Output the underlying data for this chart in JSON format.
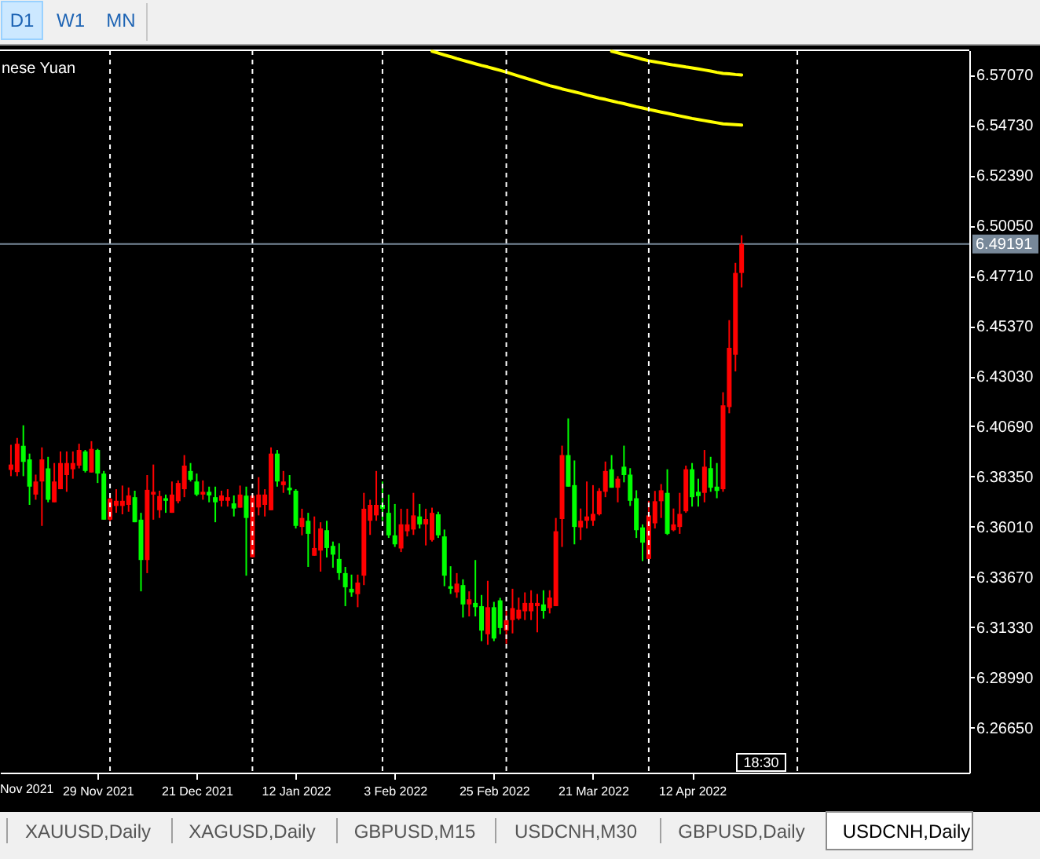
{
  "chart_data": {
    "type": "candlestick",
    "title": "nese Yuan",
    "categories": [
      null,
      null,
      null,
      null,
      null,
      null,
      null,
      null,
      null,
      null,
      null,
      null,
      null,
      null,
      "29 Nov 2021",
      null,
      null,
      null,
      null,
      null,
      null,
      null,
      null,
      null,
      null,
      null,
      null,
      null,
      null,
      null,
      "21 Dec 2021",
      null,
      null,
      null,
      null,
      null,
      null,
      null,
      null,
      null,
      null,
      null,
      null,
      null,
      null,
      null,
      "12 Jan 2022",
      null,
      null,
      null,
      null,
      null,
      null,
      null,
      null,
      null,
      null,
      null,
      null,
      null,
      null,
      null,
      "3 Feb 2022",
      null,
      null,
      null,
      null,
      null,
      null,
      null,
      null,
      null,
      null,
      null,
      null,
      null,
      null,
      null,
      "25 Feb 2022",
      null,
      null,
      null,
      null,
      null,
      null,
      null,
      null,
      null,
      null,
      null,
      null,
      null,
      null,
      null,
      "21 Mar 2022",
      null,
      null,
      null,
      null,
      null,
      null,
      null,
      null,
      null,
      null,
      null,
      null,
      null,
      null,
      null,
      "12 Apr 2022",
      null,
      null,
      null,
      null,
      null,
      null,
      null,
      null,
      null,
      null,
      null,
      null,
      null,
      null,
      null,
      null,
      null,
      null,
      null,
      null,
      null,
      null,
      null,
      null,
      null,
      null,
      null,
      null,
      null,
      null,
      null,
      null,
      null,
      null,
      null,
      null,
      null,
      null,
      null,
      null,
      null,
      null,
      null
    ],
    "ohlc": [
      [
        6.3866,
        6.3983,
        6.3837,
        6.3891
      ],
      [
        6.3856,
        6.4015,
        6.3837,
        6.3988
      ],
      [
        6.3978,
        6.4074,
        6.3837,
        6.3903
      ],
      [
        6.3915,
        6.3942,
        6.3703,
        6.3788
      ],
      [
        6.3751,
        6.3844,
        6.3727,
        6.3812
      ],
      [
        6.3812,
        6.3971,
        6.3605,
        6.3915
      ],
      [
        6.3873,
        6.3927,
        6.3715,
        6.3727
      ],
      [
        6.3715,
        6.3898,
        6.3715,
        6.3812
      ],
      [
        6.3776,
        6.3952,
        6.3776,
        6.3898
      ],
      [
        6.3842,
        6.3952,
        6.3764,
        6.3898
      ],
      [
        6.3869,
        6.3952,
        6.3825,
        6.3898
      ],
      [
        6.3886,
        6.3988,
        6.3873,
        6.3959
      ],
      [
        6.3952,
        6.3959,
        6.3854,
        6.3861
      ],
      [
        6.3854,
        6.4,
        6.3854,
        6.3964
      ],
      [
        6.3959,
        6.3964,
        6.3805,
        6.3849
      ],
      [
        6.3849,
        6.3861,
        6.3634,
        6.3634
      ],
      [
        6.3634,
        6.3744,
        6.3629,
        6.3732
      ],
      [
        6.3698,
        6.3776,
        6.3666,
        6.3722
      ],
      [
        6.3698,
        6.3793,
        6.3659,
        6.3722
      ],
      [
        6.3703,
        6.3784,
        6.3671,
        6.3747
      ],
      [
        6.3739,
        6.3769,
        6.3622,
        6.3622
      ],
      [
        6.3634,
        6.3666,
        6.33,
        6.3446
      ],
      [
        6.3446,
        6.3842,
        6.3385,
        6.3773
      ],
      [
        6.3751,
        6.3891,
        6.3634,
        6.3764
      ],
      [
        6.3678,
        6.3769,
        6.3642,
        6.3744
      ],
      [
        6.3734,
        6.3751,
        6.3666,
        6.3722
      ],
      [
        6.3666,
        6.3812,
        6.3666,
        6.3751
      ],
      [
        6.372,
        6.3817,
        6.371,
        6.3805
      ],
      [
        6.3776,
        6.3935,
        6.3739,
        6.3886
      ],
      [
        6.3861,
        6.3898,
        6.3812,
        6.382
      ],
      [
        6.3812,
        6.3849,
        6.3744,
        6.3751
      ],
      [
        6.3751,
        6.3817,
        6.3727,
        6.3764
      ],
      [
        6.3764,
        6.3788,
        6.3715,
        6.3747
      ],
      [
        6.3739,
        6.3788,
        6.3622,
        6.3715
      ],
      [
        6.3722,
        6.3769,
        6.3695,
        6.3747
      ],
      [
        6.3722,
        6.3776,
        6.3695,
        6.3739
      ],
      [
        6.371,
        6.3747,
        6.3649,
        6.3686
      ],
      [
        6.369,
        6.3793,
        6.369,
        6.3751
      ],
      [
        6.3746,
        6.3788,
        6.3373,
        6.3642
      ],
      [
        6.3459,
        6.3751,
        6.3459,
        6.3746
      ],
      [
        6.3691,
        6.3832,
        6.3654,
        6.3751
      ],
      [
        6.3703,
        6.3776,
        6.3649,
        6.3751
      ],
      [
        6.3678,
        6.3971,
        6.3678,
        6.3942
      ],
      [
        6.3942,
        6.3959,
        6.3788,
        6.3812
      ],
      [
        6.3795,
        6.3861,
        6.3759,
        6.3812
      ],
      [
        6.3783,
        6.3842,
        6.3751,
        6.3771
      ],
      [
        6.3769,
        6.3776,
        6.3593,
        6.3605
      ],
      [
        6.36,
        6.3685,
        6.3561,
        6.3642
      ],
      [
        6.3629,
        6.3666,
        6.3414,
        6.3568
      ],
      [
        6.3466,
        6.3649,
        6.3466,
        6.3502
      ],
      [
        6.349,
        6.3622,
        6.3392,
        6.3593
      ],
      [
        6.3585,
        6.3629,
        6.3458,
        6.3502
      ],
      [
        6.3512,
        6.3532,
        6.341,
        6.3471
      ],
      [
        6.3451,
        6.3524,
        6.3353,
        6.3385
      ],
      [
        6.3385,
        6.3414,
        6.3231,
        6.3319
      ],
      [
        6.3312,
        6.3378,
        6.3275,
        6.3295
      ],
      [
        6.3287,
        6.3378,
        6.3226,
        6.3341
      ],
      [
        6.3373,
        6.3759,
        6.3329,
        6.3685
      ],
      [
        6.3629,
        6.3727,
        6.3563,
        6.3703
      ],
      [
        6.3654,
        6.3861,
        6.3629,
        6.3703
      ],
      [
        6.3703,
        6.3812,
        6.3629,
        6.3685
      ],
      [
        6.3666,
        6.3751,
        6.3549,
        6.3561
      ],
      [
        6.3561,
        6.3707,
        6.3507,
        6.3519
      ],
      [
        6.35,
        6.3685,
        6.3483,
        6.3612
      ],
      [
        6.358,
        6.3685,
        6.3556,
        6.3612
      ],
      [
        6.3588,
        6.3759,
        6.3563,
        6.3654
      ],
      [
        6.3649,
        6.3707,
        6.3593,
        6.3612
      ],
      [
        6.3612,
        6.3685,
        6.3514,
        6.3637
      ],
      [
        6.3539,
        6.369,
        6.3532,
        6.3666
      ],
      [
        6.3659,
        6.3671,
        6.3549,
        6.3561
      ],
      [
        6.3556,
        6.3588,
        6.3324,
        6.3373
      ],
      [
        6.3324,
        6.3417,
        6.3288,
        6.3312
      ],
      [
        6.3295,
        6.3385,
        6.327,
        6.3336
      ],
      [
        6.3329,
        6.3356,
        6.3178,
        6.3239
      ],
      [
        6.3239,
        6.33,
        6.3183,
        6.3263
      ],
      [
        6.3246,
        6.3446,
        6.3183,
        6.3226
      ],
      [
        6.3231,
        6.3283,
        6.3068,
        6.3117
      ],
      [
        6.31,
        6.3349,
        6.3051,
        6.3226
      ],
      [
        6.3226,
        6.3251,
        6.3068,
        6.308
      ],
      [
        6.3258,
        6.327,
        6.31,
        6.3129
      ],
      [
        6.3117,
        6.3214,
        6.3056,
        6.3166
      ],
      [
        6.3166,
        6.3312,
        6.3104,
        6.3222
      ],
      [
        6.3173,
        6.3271,
        6.3166,
        6.3214
      ],
      [
        6.3207,
        6.3295,
        6.3166,
        6.3246
      ],
      [
        6.3207,
        6.3305,
        6.3166,
        6.3246
      ],
      [
        6.3231,
        6.3288,
        6.3109,
        6.3246
      ],
      [
        6.3239,
        6.3305,
        6.3173,
        6.3209
      ],
      [
        6.3222,
        6.3305,
        6.3197,
        6.3271
      ],
      [
        6.3231,
        6.3642,
        6.3231,
        6.358
      ],
      [
        6.3637,
        6.3979,
        6.3507,
        6.3935
      ],
      [
        6.3935,
        6.4106,
        6.3788,
        6.3788
      ],
      [
        6.3795,
        6.391,
        6.3519,
        6.36
      ],
      [
        6.3598,
        6.3686,
        6.3539,
        6.3629
      ],
      [
        6.3629,
        6.3812,
        6.3593,
        6.3649
      ],
      [
        6.3629,
        6.3795,
        6.3605,
        6.3661
      ],
      [
        6.3659,
        6.3781,
        6.3654,
        6.3768
      ],
      [
        6.3764,
        6.3905,
        6.3739,
        6.3861
      ],
      [
        6.3869,
        6.3935,
        6.3783,
        6.3783
      ],
      [
        6.3783,
        6.3837,
        6.3715,
        6.3825
      ],
      [
        6.3881,
        6.3979,
        6.3808,
        6.3842
      ],
      [
        6.3844,
        6.3874,
        6.3698,
        6.3722
      ],
      [
        6.3734,
        6.3771,
        6.3549,
        6.3585
      ],
      [
        6.3598,
        6.3612,
        6.3441,
        6.3527
      ],
      [
        6.3451,
        6.3722,
        6.3446,
        6.3654
      ],
      [
        6.3617,
        6.3768,
        6.3593,
        6.372
      ],
      [
        6.372,
        6.38,
        6.3642,
        6.3771
      ],
      [
        6.3759,
        6.3869,
        6.3563,
        6.3568
      ],
      [
        6.3585,
        6.3686,
        6.358,
        6.3612
      ],
      [
        6.36,
        6.3759,
        6.3568,
        6.3661
      ],
      [
        6.3673,
        6.3886,
        6.3666,
        6.3869
      ],
      [
        6.3869,
        6.3898,
        6.3695,
        6.3739
      ],
      [
        6.3764,
        6.3825,
        6.3695,
        6.3744
      ],
      [
        6.3759,
        6.3959,
        6.3715,
        6.3881
      ],
      [
        6.3874,
        6.3927,
        6.3764,
        6.3783
      ],
      [
        6.3788,
        6.3898,
        6.3734,
        6.3768
      ],
      [
        6.3776,
        6.4228,
        6.3764,
        6.4167
      ],
      [
        6.4159,
        6.4564,
        6.413,
        6.4435
      ],
      [
        6.4403,
        6.4831,
        6.4325,
        6.4784
      ],
      [
        6.4784,
        6.496,
        6.4716,
        6.49191
      ],
      null,
      null,
      null,
      null,
      null,
      null,
      null,
      null,
      null,
      null,
      null,
      null,
      null,
      null,
      null,
      null,
      null,
      null,
      null,
      null,
      null,
      null,
      null,
      null,
      null,
      null,
      null,
      null,
      null,
      null,
      null,
      null,
      null,
      null,
      null
    ],
    "colors": [
      "#ff0000",
      "#ff0000",
      "#00ff00",
      "#00ff00",
      "#ff0000",
      "#ff0000",
      "#00ff00",
      "#ff0000",
      "#ff0000",
      "#ff0000",
      "#ff0000",
      "#ff0000",
      "#00ff00",
      "#ff0000",
      "#00ff00",
      "#00ff00",
      "#ff0000",
      "#ff0000",
      "#ff0000",
      "#ff0000",
      "#00ff00",
      "#00ff00",
      "#ff0000",
      "#ff0000",
      "#ff0000",
      "#00ff00",
      "#ff0000",
      "#ff0000",
      "#ff0000",
      "#00ff00",
      "#00ff00",
      "#ff0000",
      "#00ff00",
      "#00ff00",
      "#ff0000",
      "#ff0000",
      "#00ff00",
      "#ff0000",
      "#00ff00",
      "#ff0000",
      "#ff0000",
      "#ff0000",
      "#ff0000",
      "#00ff00",
      "#ff0000",
      "#00ff00",
      "#00ff00",
      "#ff0000",
      "#00ff00",
      "#ff0000",
      "#ff0000",
      "#00ff00",
      "#00ff00",
      "#00ff00",
      "#00ff00",
      "#00ff00",
      "#ff0000",
      "#ff0000",
      "#ff0000",
      "#ff0000",
      "#00ff00",
      "#00ff00",
      "#00ff00",
      "#ff0000",
      "#ff0000",
      "#ff0000",
      "#00ff00",
      "#ff0000",
      "#ff0000",
      "#00ff00",
      "#00ff00",
      "#00ff00",
      "#ff0000",
      "#00ff00",
      "#ff0000",
      "#00ff00",
      "#00ff00",
      "#ff0000",
      "#00ff00",
      "#00ff00",
      "#ff0000",
      "#ff0000",
      "#ff0000",
      "#ff0000",
      "#ff0000",
      "#ff0000",
      "#00ff00",
      "#ff0000",
      "#ff0000",
      "#ff0000",
      "#00ff00",
      "#00ff00",
      "#ff0000",
      "#ff0000",
      "#ff0000",
      "#ff0000",
      "#ff0000",
      "#00ff00",
      "#ff0000",
      "#00ff00",
      "#00ff00",
      "#00ff00",
      "#00ff00",
      "#ff0000",
      "#ff0000",
      "#ff0000",
      "#00ff00",
      "#ff0000",
      "#ff0000",
      "#ff0000",
      "#00ff00",
      "#00ff00",
      "#ff0000",
      "#00ff00",
      "#00ff00",
      "#ff0000",
      "#ff0000",
      "#ff0000",
      "#ff0000",
      null,
      null,
      null,
      null,
      null,
      null,
      null,
      null,
      null,
      null,
      null,
      null,
      null,
      null,
      null,
      null,
      null,
      null,
      null,
      null,
      null,
      null,
      null,
      null,
      null,
      null,
      null,
      null,
      null,
      null,
      null,
      null,
      null,
      null,
      null
    ],
    "series": [
      {
        "type": "line",
        "color": "#ffff00",
        "values": [
          null,
          null,
          null,
          null,
          null,
          null,
          null,
          null,
          null,
          null,
          null,
          null,
          null,
          null,
          null,
          null,
          null,
          null,
          null,
          null,
          null,
          null,
          null,
          null,
          null,
          null,
          null,
          null,
          null,
          null,
          null,
          null,
          null,
          null,
          null,
          null,
          null,
          null,
          null,
          null,
          null,
          null,
          null,
          null,
          null,
          null,
          null,
          null,
          null,
          null,
          null,
          null,
          null,
          null,
          null,
          null,
          null,
          null,
          null,
          null,
          null,
          null,
          null,
          null,
          null,
          null,
          null,
          null,
          6.5817,
          6.5809,
          6.58,
          6.5792,
          6.5783,
          6.5775,
          6.5767,
          6.5759,
          6.5751,
          6.5744,
          6.5736,
          6.5728,
          6.572,
          6.5711,
          6.5702,
          6.5693,
          6.5684,
          6.5675,
          6.5666,
          6.5657,
          6.565,
          6.5642,
          6.5635,
          6.5628,
          6.5621,
          6.5613,
          6.5606,
          6.5599,
          6.5593,
          6.5586,
          6.5579,
          6.5573,
          6.5566,
          6.5559,
          6.5553,
          6.5546,
          6.554,
          6.5534,
          6.5528,
          6.5522,
          6.5516,
          6.551,
          6.5504,
          6.5499,
          6.5494,
          6.5489,
          6.5484,
          6.5479,
          6.5477,
          6.5475,
          6.5473,
          null,
          null,
          null,
          null,
          null,
          null,
          null,
          null,
          null,
          null,
          null,
          null,
          null,
          null,
          null,
          null,
          null,
          null,
          null,
          null,
          null,
          null,
          null,
          null,
          null,
          null,
          null,
          null,
          null,
          null,
          null,
          null,
          null,
          null,
          null
        ]
      },
      {
        "type": "line",
        "color": "#ffff00",
        "values": [
          null,
          null,
          null,
          null,
          null,
          null,
          null,
          null,
          null,
          null,
          null,
          null,
          null,
          null,
          null,
          null,
          null,
          null,
          null,
          null,
          null,
          null,
          null,
          null,
          null,
          null,
          null,
          null,
          null,
          null,
          null,
          null,
          null,
          null,
          null,
          null,
          null,
          null,
          null,
          null,
          null,
          null,
          null,
          null,
          null,
          null,
          null,
          null,
          null,
          null,
          null,
          null,
          null,
          null,
          null,
          null,
          null,
          null,
          null,
          null,
          null,
          null,
          null,
          null,
          null,
          null,
          null,
          null,
          null,
          null,
          null,
          null,
          null,
          null,
          null,
          null,
          null,
          null,
          null,
          null,
          null,
          null,
          null,
          null,
          null,
          null,
          null,
          null,
          null,
          null,
          null,
          null,
          null,
          null,
          null,
          null,
          null,
          6.5817,
          6.581,
          6.5802,
          6.5795,
          6.5788,
          6.578,
          6.5773,
          6.5768,
          6.5763,
          6.5758,
          6.5753,
          6.5749,
          6.5744,
          6.574,
          6.5735,
          6.573,
          6.5725,
          6.5719,
          6.5714,
          6.5712,
          6.5709,
          6.5707,
          null,
          null,
          null,
          null,
          null,
          null,
          null,
          null,
          null,
          null,
          null,
          null,
          null,
          null,
          null,
          null,
          null,
          null,
          null,
          null,
          null,
          null,
          null,
          null,
          null,
          null,
          null,
          null,
          null,
          null,
          null,
          null,
          null,
          null,
          null
        ]
      }
    ],
    "ylim": [
      6.2455,
      6.5822
    ],
    "yticks": [
      {
        "value": 6.5707,
        "label": "6.57070"
      },
      {
        "value": 6.5473,
        "label": "6.54730"
      },
      {
        "value": 6.5239,
        "label": "6.52390"
      },
      {
        "value": 6.5005,
        "label": "6.50050"
      },
      {
        "value": 6.4771,
        "label": "6.47710"
      },
      {
        "value": 6.4537,
        "label": "6.45370"
      },
      {
        "value": 6.4303,
        "label": "6.43030"
      },
      {
        "value": 6.4069,
        "label": "6.40690"
      },
      {
        "value": 6.3835,
        "label": "6.38350"
      },
      {
        "value": 6.3601,
        "label": "6.36010"
      },
      {
        "value": 6.3367,
        "label": "6.33670"
      },
      {
        "value": 6.3133,
        "label": "6.31330"
      },
      {
        "value": 6.2899,
        "label": "6.28990"
      },
      {
        "value": 6.2665,
        "label": "6.26650"
      }
    ],
    "ref_lines": [
      {
        "axis": "y",
        "value": 6.49191,
        "label": "6.49191",
        "color": "#778899"
      }
    ],
    "annotations": [
      "Nov 2021",
      "18:30",
      "D1",
      "W1",
      "MN",
      "XAUUSD,Daily",
      "XAGUSD,Daily",
      "GBPUSD,M15",
      "USDCNH,M30",
      "GBPUSD,Daily",
      "USDCNH,Daily"
    ]
  }
}
